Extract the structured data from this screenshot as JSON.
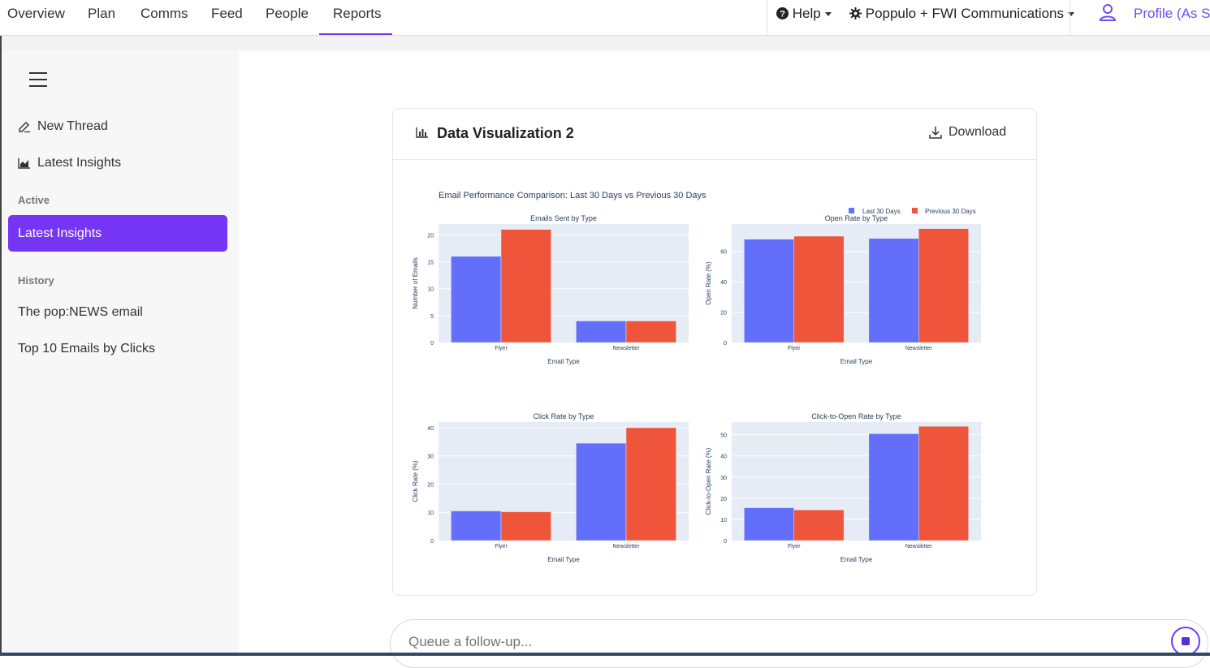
{
  "nav": {
    "tabs": [
      "Overview",
      "Plan",
      "Comms",
      "Feed",
      "People",
      "Reports"
    ],
    "active_tab": "Reports",
    "help_label": "Help",
    "org_label": "Poppulo + FWI Communications",
    "profile_label": "Profile (As S"
  },
  "sidebar": {
    "new_thread": "New Thread",
    "latest_insights": "Latest Insights",
    "active_heading": "Active",
    "active_item": "Latest Insights",
    "history_heading": "History",
    "history_items": [
      "The pop:NEWS email",
      "Top 10 Emails by Clicks"
    ]
  },
  "card": {
    "title": "Data Visualization 2",
    "download_label": "Download"
  },
  "composer": {
    "placeholder": "Queue a follow-up..."
  },
  "colors": {
    "accent": "#7535f5",
    "series1": "#636efa",
    "series2": "#ef553b",
    "plot_bg": "#e5ecf6"
  },
  "chart_data": {
    "title": "Email Performance Comparison: Last 30 Days vs Previous 30 Days",
    "legend": [
      "Last 30 Days",
      "Previous 30 Days"
    ],
    "legend_position": "top-right",
    "type": "bar",
    "subplots": [
      {
        "title": "Emails Sent by Type",
        "xlabel": "Email Type",
        "ylabel": "Number of Emails",
        "categories": [
          "Flyer",
          "Newsletter"
        ],
        "ylim": [
          0,
          22
        ],
        "yticks": [
          0,
          5,
          10,
          15,
          20
        ],
        "series": [
          {
            "name": "Last 30 Days",
            "values": [
              16,
              4
            ]
          },
          {
            "name": "Previous 30 Days",
            "values": [
              21,
              4
            ]
          }
        ]
      },
      {
        "title": "Open Rate by Type",
        "xlabel": "Email Type",
        "ylabel": "Open Rate (%)",
        "categories": [
          "Flyer",
          "Newsletter"
        ],
        "ylim": [
          0,
          78
        ],
        "yticks": [
          0,
          20,
          40,
          60
        ],
        "series": [
          {
            "name": "Last 30 Days",
            "values": [
              68,
              68.5
            ]
          },
          {
            "name": "Previous 30 Days",
            "values": [
              70,
              75
            ]
          }
        ]
      },
      {
        "title": "Click Rate by Type",
        "xlabel": "Email Type",
        "ylabel": "Click Rate (%)",
        "categories": [
          "Flyer",
          "Newsletter"
        ],
        "ylim": [
          0,
          42
        ],
        "yticks": [
          0,
          10,
          20,
          30,
          40
        ],
        "series": [
          {
            "name": "Last 30 Days",
            "values": [
              10.5,
              34.5
            ]
          },
          {
            "name": "Previous 30 Days",
            "values": [
              10.2,
              40
            ]
          }
        ]
      },
      {
        "title": "Click-to-Open Rate by Type",
        "xlabel": "Email Type",
        "ylabel": "Click-to-Open Rate (%)",
        "categories": [
          "Flyer",
          "Newsletter"
        ],
        "ylim": [
          0,
          56
        ],
        "yticks": [
          0,
          10,
          20,
          30,
          40,
          50
        ],
        "series": [
          {
            "name": "Last 30 Days",
            "values": [
              15.5,
              50.5
            ]
          },
          {
            "name": "Previous 30 Days",
            "values": [
              14.5,
              54
            ]
          }
        ]
      }
    ]
  }
}
